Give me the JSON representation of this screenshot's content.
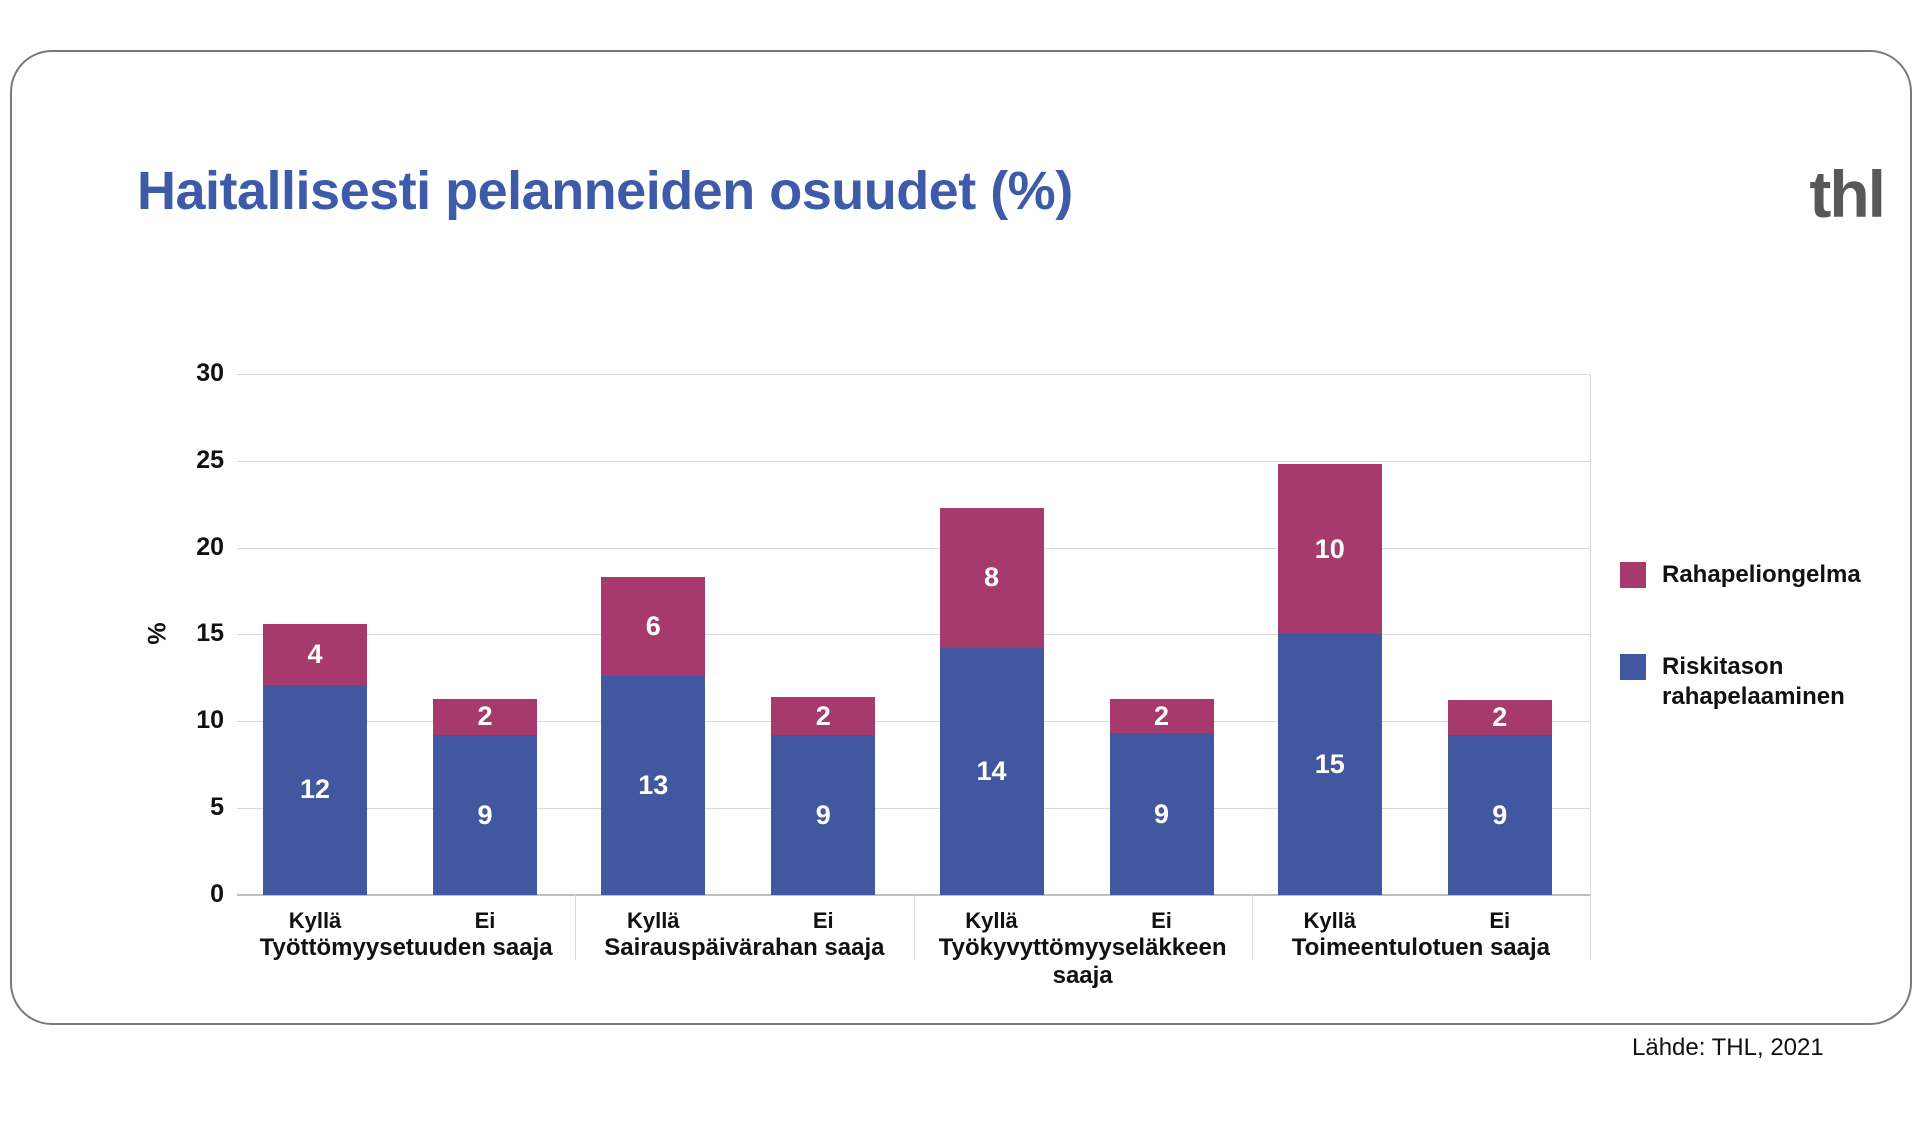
{
  "header": {
    "title": "Haitallisesti pelanneiden osuudet (%)",
    "logo": "thl"
  },
  "source": {
    "label": "Lähde: THL, 2021"
  },
  "colors": {
    "title_blue": "#3e5ba9",
    "logo_gray": "#58585a",
    "bar_risk_blue": "#4158a0",
    "bar_problem_pink": "#a73a6c",
    "gridline": "#d9d9d9",
    "axis": "#bfbfbf",
    "text": "#111111"
  },
  "chart_data": {
    "type": "bar",
    "stacked": true,
    "title": "Haitallisesti pelanneiden osuudet (%)",
    "xlabel": "",
    "ylabel": "%",
    "ylim": [
      0,
      30
    ],
    "ytick_step": 5,
    "yticks": [
      0,
      5,
      10,
      15,
      20,
      25,
      30
    ],
    "grid": true,
    "legend_position": "right",
    "series": [
      {
        "key": "problem",
        "name": "Rahapeliongelma",
        "color": "#a73a6c"
      },
      {
        "key": "risk",
        "name": "Riskitason rahapelaaminen",
        "color": "#4158a0"
      }
    ],
    "groups": [
      {
        "title": "Työttömyysetuuden saaja",
        "bars": [
          {
            "category": "Kyllä",
            "risk": 12.1,
            "problem": 3.5,
            "risk_label": "12",
            "problem_label": "4"
          },
          {
            "category": "Ei",
            "risk": 9.2,
            "problem": 2.1,
            "risk_label": "9",
            "problem_label": "2"
          }
        ]
      },
      {
        "title": "Sairauspäivärahan saaja",
        "bars": [
          {
            "category": "Kyllä",
            "risk": 12.6,
            "problem": 5.7,
            "risk_label": "13",
            "problem_label": "6"
          },
          {
            "category": "Ei",
            "risk": 9.2,
            "problem": 2.2,
            "risk_label": "9",
            "problem_label": "2"
          }
        ]
      },
      {
        "title": "Työkyvyttömyyseläkkeen saaja",
        "bars": [
          {
            "category": "Kyllä",
            "risk": 14.2,
            "problem": 8.1,
            "risk_label": "14",
            "problem_label": "8"
          },
          {
            "category": "Ei",
            "risk": 9.3,
            "problem": 2.0,
            "risk_label": "9",
            "problem_label": "2"
          }
        ]
      },
      {
        "title": "Toimeentulotuen saaja",
        "bars": [
          {
            "category": "Kyllä",
            "risk": 15.0,
            "problem": 9.8,
            "risk_label": "15",
            "problem_label": "10"
          },
          {
            "category": "Ei",
            "risk": 9.2,
            "problem": 2.0,
            "risk_label": "9",
            "problem_label": "2"
          }
        ]
      }
    ]
  }
}
